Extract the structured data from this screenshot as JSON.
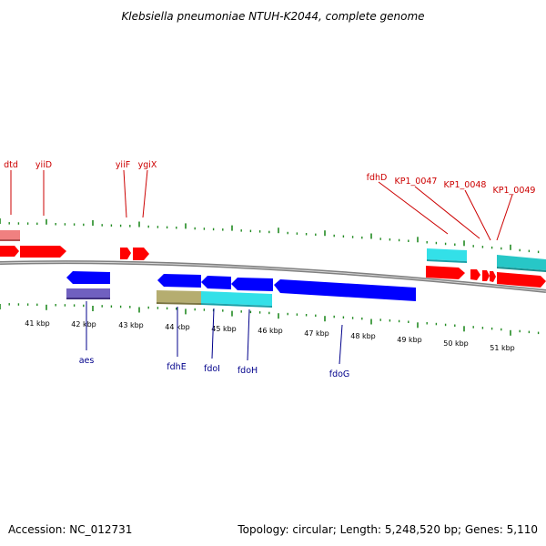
{
  "title": "Klebsiella pneumoniae NTUH-K2044, complete genome",
  "footer": {
    "accession": "Accession: NC_012731",
    "topology": "Topology: circular; Length: 5,248,520 bp; Genes: 5,110"
  },
  "kbp_labels": [
    "41 kbp",
    "42 kbp",
    "43 kbp",
    "44 kbp",
    "45 kbp",
    "46 kbp",
    "47 kbp",
    "48 kbp",
    "49 kbp",
    "50 kbp",
    "51 kbp"
  ],
  "top_genes": [
    "dtd",
    "yiiD",
    "yiiF",
    "ygiX",
    "fdhD",
    "KP1_0047",
    "KP1_0048",
    "KP1_0049"
  ],
  "bottom_genes": [
    "aes",
    "fdhE",
    "fdoI",
    "fdoH",
    "fdoG"
  ],
  "colors": {
    "forward_red": "#ff0000",
    "reverse_blue": "#0000ff",
    "cyan": "#33e0e8",
    "teal": "#27c7c7",
    "khaki": "#b5ad70",
    "purple": "#7060c0",
    "pink": "#f08080",
    "tick_green": "#228b22",
    "backbone_gray": "#808080"
  }
}
